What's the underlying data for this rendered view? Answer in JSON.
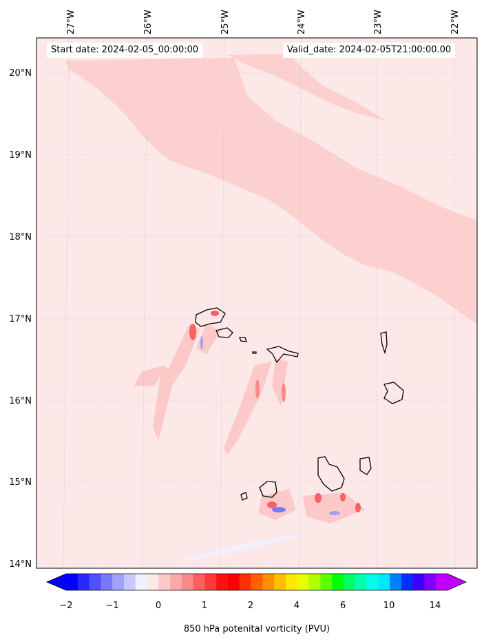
{
  "map": {
    "start_label": "Start date: 2024-02-05_00:00:00",
    "valid_label": "Valid_date: 2024-02-05T21:00:00.00",
    "lon_labels": [
      "27°W",
      "26°W",
      "25°W",
      "24°W",
      "23°W",
      "22°W"
    ],
    "lat_labels": [
      "20°N",
      "19°N",
      "18°N",
      "17°N",
      "16°N",
      "15°N",
      "14°N"
    ],
    "background_color": "#fde8e8",
    "band_color": "#fdd0d0"
  },
  "colorbar": {
    "title": "850 hPa potenital vorticity (PVU)",
    "tick_labels": [
      "−2",
      "−1",
      "0",
      "1",
      "2",
      "4",
      "6",
      "10",
      "14"
    ],
    "colors": [
      "#0000ff",
      "#2828ff",
      "#5050ff",
      "#7878ff",
      "#a0a0ff",
      "#c8c8ff",
      "#f0f0ff",
      "#fde8e8",
      "#fcc8c8",
      "#fca8a8",
      "#fc8888",
      "#fc6060",
      "#fc3838",
      "#ff1010",
      "#ff0000",
      "#ff3000",
      "#ff6000",
      "#ff9000",
      "#ffc000",
      "#ffe800",
      "#e8ff00",
      "#b0ff00",
      "#60ff00",
      "#00ff00",
      "#00ff60",
      "#00ffb0",
      "#00ffe8",
      "#00e8ff",
      "#0080ff",
      "#0030ff",
      "#4000ff",
      "#8000ff",
      "#c000ff"
    ]
  }
}
